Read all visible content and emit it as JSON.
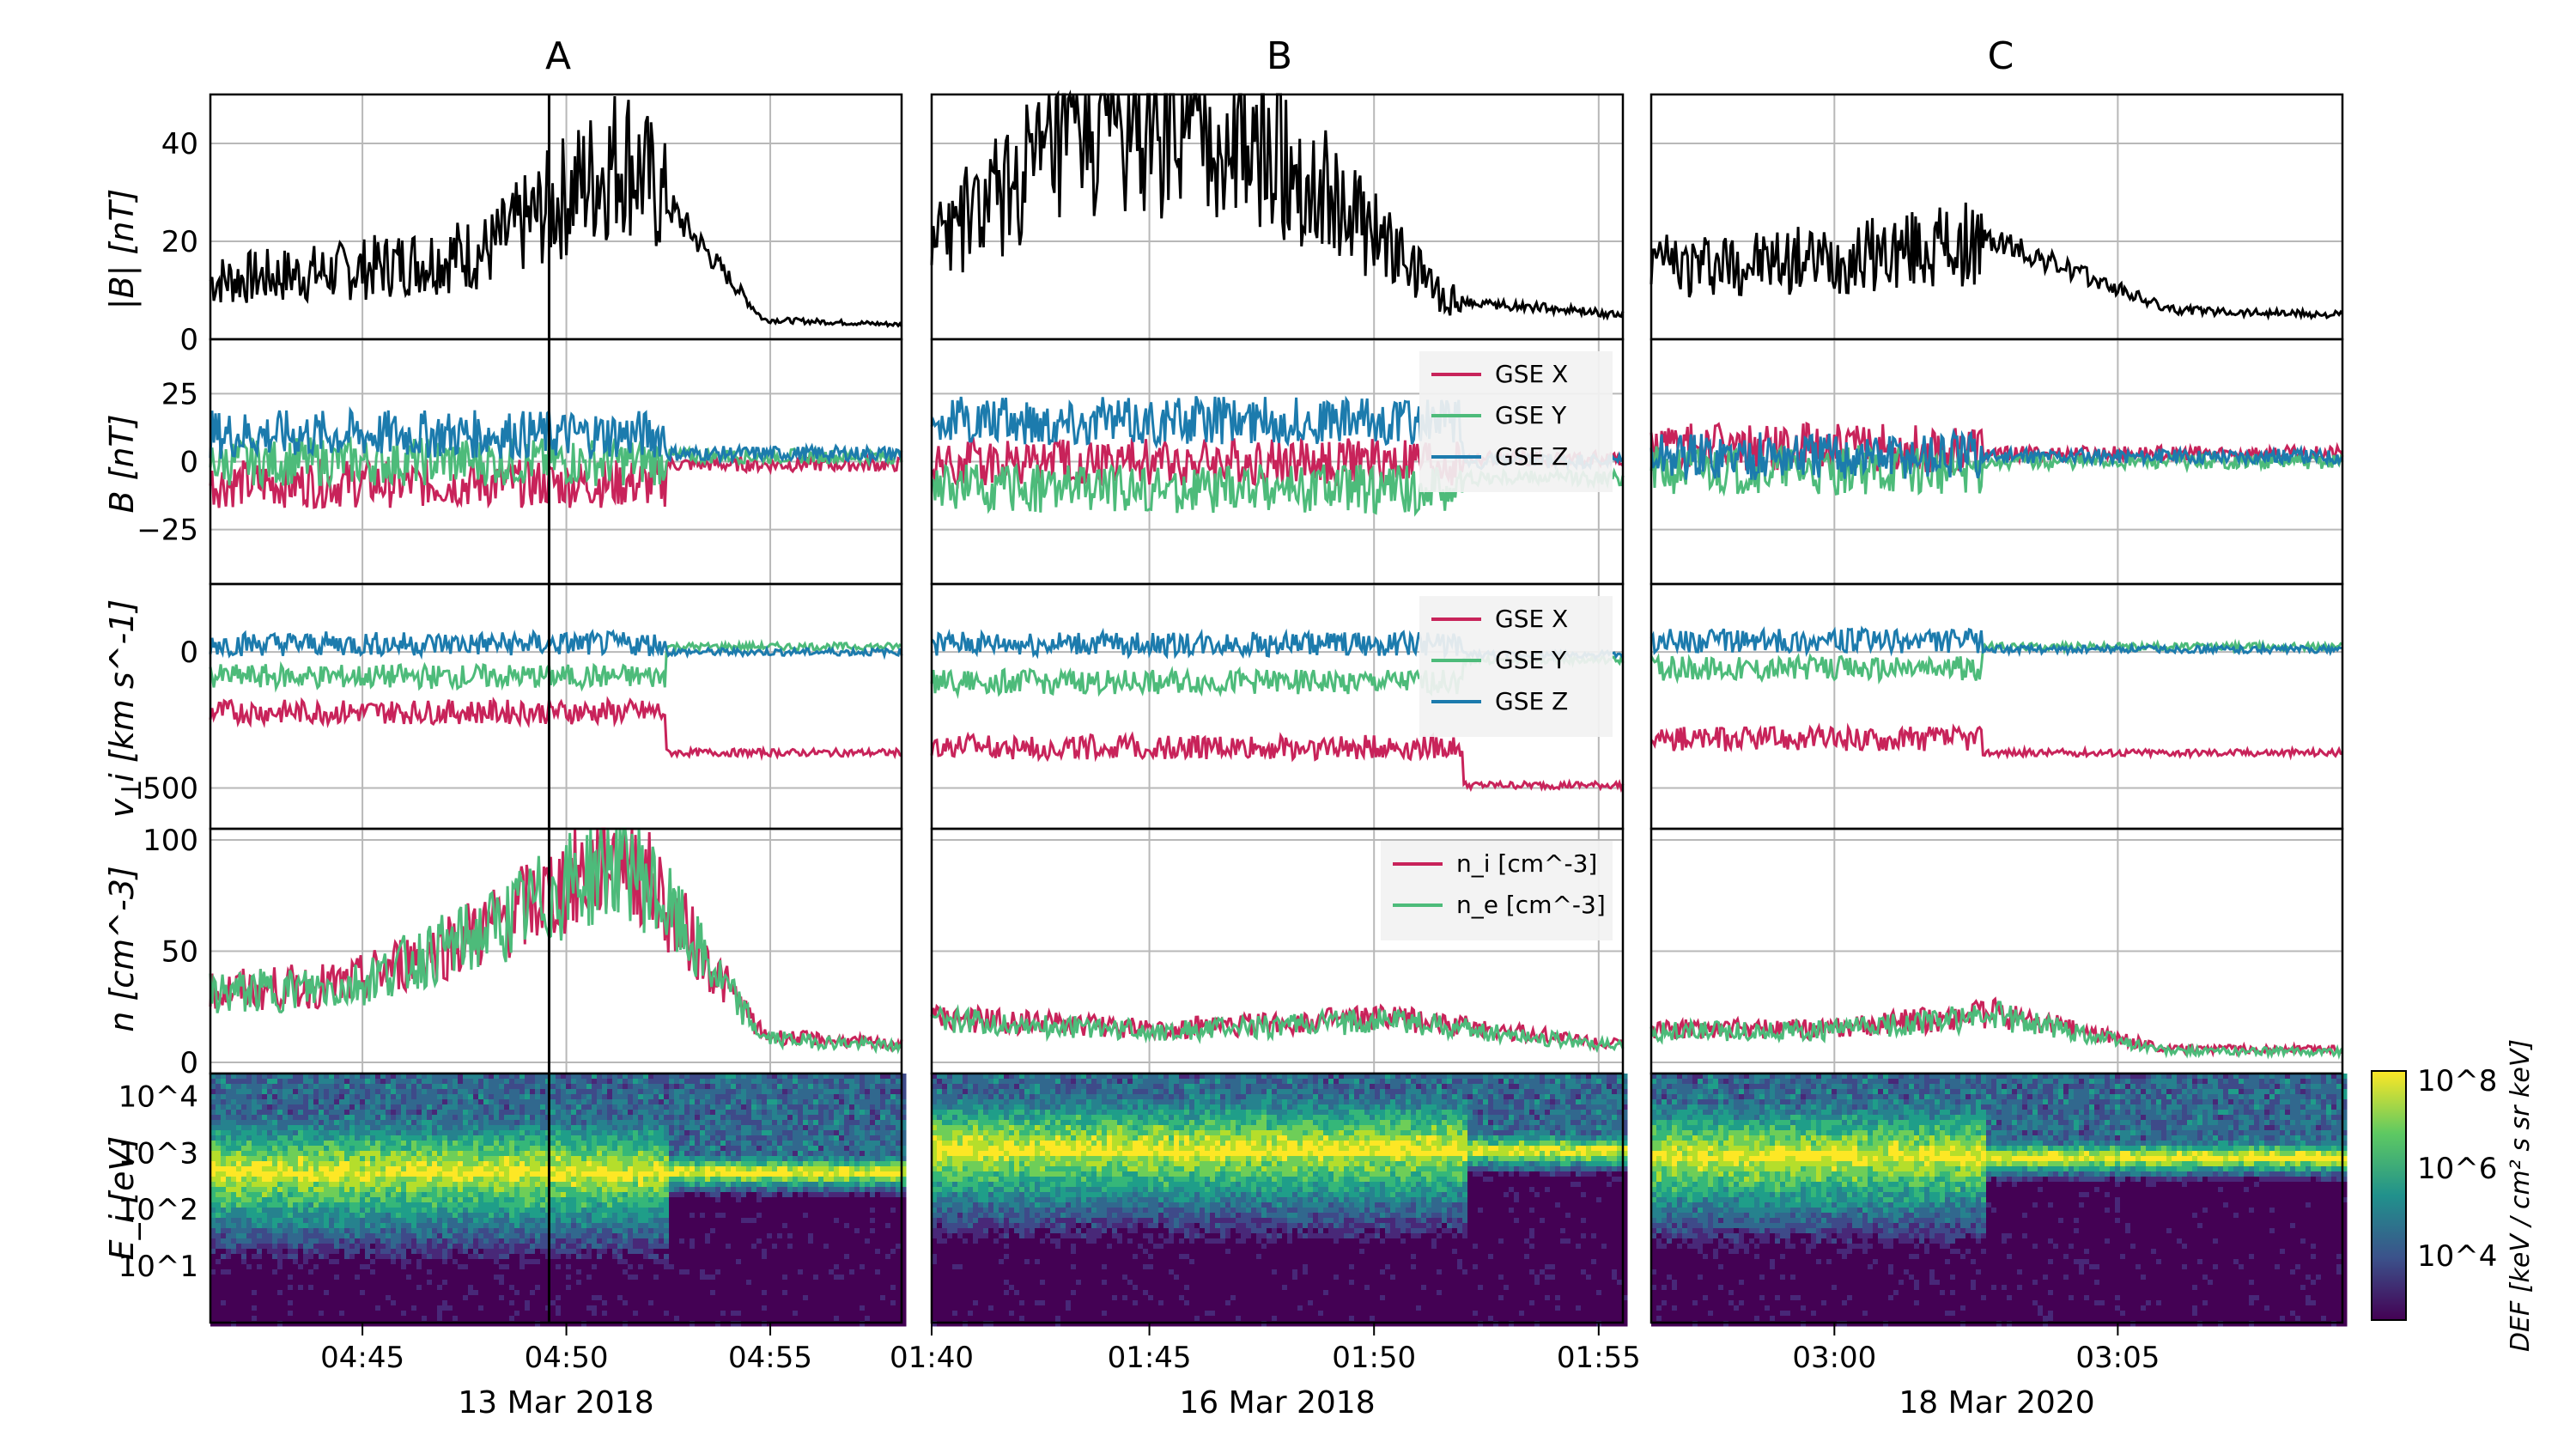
{
  "colors": {
    "gse_x": "#c8235a",
    "gse_y": "#4dbb7a",
    "gse_z": "#1c7bad",
    "bmag": "#000000",
    "grid": "#b8b8b8",
    "event_line": "#000000"
  },
  "rows": {
    "bmag_label": "|B| [nT]",
    "bvec_label": "B [nT]",
    "vi_label": "v_i [km s^-1]",
    "n_label": "n [cm^-3]",
    "ei_label": "E_i [eV]"
  },
  "colorbar": {
    "label": "DEF [keV / cm² s sr keV]",
    "ticks": [
      "10^4",
      "10^6",
      "10^8"
    ],
    "colormap": "viridis"
  },
  "chart_data": [
    {
      "title": "A",
      "date": "13 Mar 2018",
      "type": "line",
      "x_ticks": [
        "04:45",
        "04:50",
        "04:55"
      ],
      "event_time": "04:49:40",
      "bmag": {
        "ylim": [
          0,
          50
        ],
        "yticks": [
          "0",
          "20",
          "40"
        ],
        "approx_profile": [
          {
            "t": "04:42",
            "v": 12
          },
          {
            "t": "04:47",
            "v": 14
          },
          {
            "t": "04:50",
            "v": 18
          },
          {
            "t": "04:52",
            "v": 38
          },
          {
            "t": "04:53",
            "v": 4
          },
          {
            "t": "04:59",
            "v": 3
          }
        ]
      },
      "bvec": {
        "ylim": [
          -45,
          45
        ],
        "yticks": [
          "−25",
          "0",
          "25"
        ],
        "legend": [],
        "series": [
          {
            "name": "GSE X",
            "approx_level_before": -8,
            "approx_level_after": -1
          },
          {
            "name": "GSE Y",
            "approx_level_before": 0,
            "approx_level_after": 2
          },
          {
            "name": "GSE Z",
            "approx_level_before": 10,
            "approx_level_after": 3
          }
        ]
      },
      "vi": {
        "ylim": [
          -650,
          250
        ],
        "yticks": [
          "−500",
          "0"
        ],
        "legend": [],
        "series": [
          {
            "name": "GSE X",
            "approx_level_before": -220,
            "approx_level_after": -370
          },
          {
            "name": "GSE Y",
            "approx_level_before": -90,
            "approx_level_after": 20
          },
          {
            "name": "GSE Z",
            "approx_level_before": 30,
            "approx_level_after": 0
          }
        ]
      },
      "density": {
        "ylim": [
          -5,
          105
        ],
        "yticks": [
          "0",
          "50",
          "100"
        ],
        "legend": [],
        "approx_profile": [
          {
            "t": "04:42",
            "v": 32
          },
          {
            "t": "04:48",
            "v": 35
          },
          {
            "t": "04:51",
            "v": 60
          },
          {
            "t": "04:52",
            "v": 95
          },
          {
            "t": "04:53",
            "v": 12
          },
          {
            "t": "04:59",
            "v": 8
          }
        ]
      },
      "ei": {
        "ylim_log10": [
          0,
          4.4
        ],
        "yticks": [
          "10^1",
          "10^2",
          "10^3",
          "10^4"
        ],
        "description_peak_energy_eV": [
          300,
          500
        ]
      }
    },
    {
      "title": "B",
      "date": "16 Mar 2018",
      "type": "line",
      "x_ticks": [
        "01:40",
        "01:45",
        "01:50",
        "01:55"
      ],
      "bmag": {
        "ylim": [
          0,
          50
        ],
        "yticks": [],
        "approx_profile": [
          {
            "t": "01:40",
            "v": 20
          },
          {
            "t": "01:43",
            "v": 44
          },
          {
            "t": "01:50",
            "v": 38
          },
          {
            "t": "01:53",
            "v": 8
          },
          {
            "t": "01:56",
            "v": 5
          }
        ]
      },
      "bvec": {
        "ylim": [
          -45,
          45
        ],
        "yticks": [],
        "legend": [
          "GSE X",
          "GSE Y",
          "GSE Z"
        ],
        "series": [
          {
            "name": "GSE X",
            "approx_level_before": 0,
            "approx_level_after": 1
          },
          {
            "name": "GSE Y",
            "approx_level_before": -10,
            "approx_level_after": -6
          },
          {
            "name": "GSE Z",
            "approx_level_before": 15,
            "approx_level_after": 0
          }
        ]
      },
      "vi": {
        "ylim": [
          -650,
          250
        ],
        "yticks": [],
        "legend": [
          "GSE X",
          "GSE Y",
          "GSE Z"
        ],
        "series": [
          {
            "name": "GSE X",
            "approx_level_before": -350,
            "approx_level_after": -490
          },
          {
            "name": "GSE Y",
            "approx_level_before": -110,
            "approx_level_after": -30
          },
          {
            "name": "GSE Z",
            "approx_level_before": 30,
            "approx_level_after": -10
          }
        ]
      },
      "density": {
        "ylim": [
          -5,
          105
        ],
        "yticks": [],
        "legend": [
          "n_i [cm^-3]",
          "n_e [cm^-3]"
        ],
        "approx_profile": [
          {
            "t": "01:40",
            "v": 20
          },
          {
            "t": "01:45",
            "v": 15
          },
          {
            "t": "01:50",
            "v": 20
          },
          {
            "t": "01:56",
            "v": 8
          }
        ]
      },
      "ei": {
        "ylim_log10": [
          0,
          4.4
        ],
        "yticks": [],
        "description_peak_energy_eV": [
          800,
          1200
        ]
      }
    },
    {
      "title": "C",
      "date": "18 Mar 2020",
      "type": "line",
      "x_ticks": [
        "03:00",
        "03:05"
      ],
      "bmag": {
        "ylim": [
          0,
          50
        ],
        "yticks": [],
        "approx_profile": [
          {
            "t": "02:57",
            "v": 15
          },
          {
            "t": "03:01",
            "v": 16
          },
          {
            "t": "03:02",
            "v": 20
          },
          {
            "t": "03:03",
            "v": 6
          },
          {
            "t": "03:09",
            "v": 5
          }
        ]
      },
      "bvec": {
        "ylim": [
          -45,
          45
        ],
        "yticks": [],
        "legend": [],
        "series": [
          {
            "name": "GSE X",
            "approx_level_before": 5,
            "approx_level_after": 3
          },
          {
            "name": "GSE Y",
            "approx_level_before": -3,
            "approx_level_after": 0
          },
          {
            "name": "GSE Z",
            "approx_level_before": 2,
            "approx_level_after": 2
          }
        ]
      },
      "vi": {
        "ylim": [
          -650,
          250
        ],
        "yticks": [],
        "legend": [],
        "series": [
          {
            "name": "GSE X",
            "approx_level_before": -320,
            "approx_level_after": -370
          },
          {
            "name": "GSE Y",
            "approx_level_before": -60,
            "approx_level_after": 20
          },
          {
            "name": "GSE Z",
            "approx_level_before": 40,
            "approx_level_after": 10
          }
        ]
      },
      "density": {
        "ylim": [
          -5,
          105
        ],
        "yticks": [],
        "legend": [],
        "approx_profile": [
          {
            "t": "02:57",
            "v": 15
          },
          {
            "t": "03:01",
            "v": 15
          },
          {
            "t": "03:02",
            "v": 22
          },
          {
            "t": "03:03",
            "v": 6
          },
          {
            "t": "03:09",
            "v": 6
          }
        ]
      },
      "ei": {
        "ylim_log10": [
          0,
          4.4
        ],
        "yticks": [],
        "description_peak_energy_eV": [
          600,
          900
        ]
      }
    }
  ]
}
